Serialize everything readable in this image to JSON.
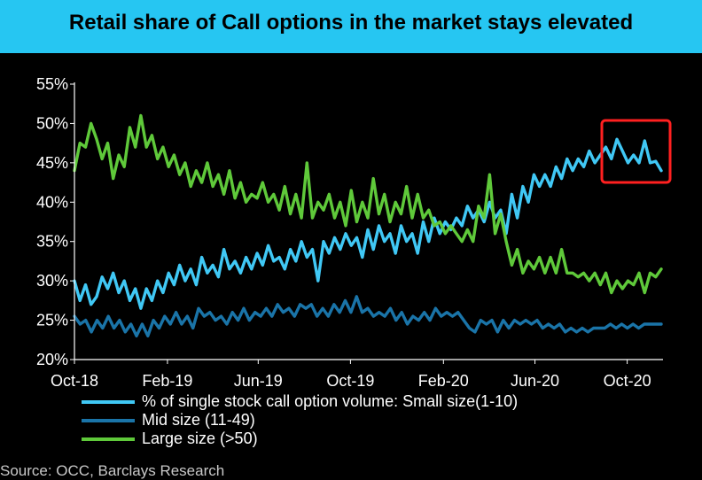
{
  "colors": {
    "background": "#000000",
    "title_band": "#26c6f2",
    "small": "#40c8f5",
    "mid": "#1a74a8",
    "large": "#5fc93a",
    "highlight_box": "#ff2020",
    "axis": "#ffffff"
  },
  "chart_data": {
    "type": "line",
    "title": "Retail share of Call options in the market stays elevated",
    "xlabel": "",
    "ylabel": "",
    "ylim": [
      20,
      55
    ],
    "y_ticks": [
      "20%",
      "25%",
      "30%",
      "35%",
      "40%",
      "45%",
      "50%",
      "55%"
    ],
    "x_ticks": [
      "Oct-18",
      "Feb-19",
      "Jun-19",
      "Oct-19",
      "Feb-20",
      "Jun-20",
      "Oct-20"
    ],
    "x_range": [
      "2018-10-01",
      "2020-11-15"
    ],
    "series": [
      {
        "name": "% of single stock call option volume: Small size(1-10)",
        "color_key": "small",
        "values": [
          30,
          27.5,
          29.5,
          27,
          28,
          30.5,
          29,
          31,
          28.5,
          30,
          27.5,
          29,
          26.5,
          29,
          27.5,
          30,
          28.5,
          31,
          29.5,
          32,
          30,
          31.5,
          29.5,
          33,
          31,
          32,
          30.5,
          34,
          31.5,
          32.5,
          31,
          33,
          31.5,
          33.5,
          32,
          34.5,
          32.5,
          33,
          31.5,
          34,
          32.5,
          35,
          33,
          34,
          30,
          35,
          33.5,
          35.5,
          34,
          36,
          34.5,
          35.5,
          33,
          36.5,
          34,
          37,
          35,
          36,
          33.5,
          37,
          35,
          36,
          33.5,
          37.5,
          35,
          38,
          36,
          37.5,
          36.5,
          38,
          37,
          39.5,
          38,
          39,
          37.5,
          40,
          38,
          39,
          36,
          41,
          38,
          42,
          40,
          43.5,
          42,
          43.5,
          42,
          44.5,
          43,
          45.5,
          44,
          45.5,
          44.5,
          46.5,
          45,
          46,
          47,
          45.5,
          48,
          46.5,
          45,
          46,
          45,
          47.8,
          45,
          45.2,
          44
        ]
      },
      {
        "name": "Mid size (11-49)",
        "color_key": "mid",
        "values": [
          25.5,
          24.5,
          25,
          23.5,
          25,
          24,
          25.5,
          24,
          25,
          23.5,
          24.5,
          23,
          24.5,
          23,
          25,
          24,
          25.5,
          24.5,
          26,
          24.5,
          25.5,
          24,
          26.5,
          25.5,
          26,
          25,
          25.5,
          24.5,
          26,
          25,
          26.5,
          25,
          26,
          25.5,
          26.5,
          25.5,
          27,
          26,
          26.5,
          25.5,
          27,
          26.5,
          27,
          25.5,
          26.5,
          25.5,
          27,
          26,
          27.5,
          26,
          28,
          26,
          26.5,
          25.5,
          26,
          25.5,
          26.5,
          25,
          26,
          24.5,
          25.5,
          25,
          26,
          25,
          26.5,
          25.5,
          26,
          25.5,
          26,
          25,
          24,
          23.5,
          25,
          24.5,
          25,
          23.5,
          25,
          24,
          25,
          24.5,
          25,
          24.5,
          25,
          24,
          24.5,
          24,
          24.5,
          23.5,
          24,
          23.5,
          24,
          23.5,
          24,
          24,
          24,
          24.5,
          24,
          24.5,
          24,
          24.5,
          24,
          24.5,
          24.5,
          24.5,
          24.5
        ]
      },
      {
        "name": "Large size (>50)",
        "color_key": "large",
        "values": [
          44,
          47.5,
          47,
          50,
          48,
          45.5,
          47.5,
          43,
          46,
          44.5,
          49.5,
          47,
          51,
          47,
          48.5,
          45.5,
          47,
          44.5,
          46,
          43.5,
          45,
          42,
          44,
          42.5,
          45,
          42,
          43.5,
          41,
          44,
          40.5,
          42.5,
          40,
          41,
          40.5,
          42.5,
          40,
          41,
          39,
          42,
          38.5,
          41,
          38,
          45,
          38,
          40,
          39,
          41,
          38,
          40,
          37,
          41.5,
          37.5,
          40,
          38,
          43,
          38.5,
          41,
          37.5,
          40,
          38.5,
          42,
          38,
          41,
          38,
          39,
          37,
          37.5,
          36,
          37,
          36,
          35,
          36.5,
          35,
          39.5,
          38,
          43.5,
          36,
          38.5,
          35,
          32,
          34,
          31,
          32.5,
          31.5,
          33,
          31,
          33,
          31,
          34,
          31,
          31,
          30.5,
          31,
          30,
          31,
          29.5,
          31,
          28.5,
          30,
          29,
          30,
          29.5,
          31,
          28.5,
          31,
          30.5,
          31.5
        ]
      }
    ],
    "annotation": "red rectangle highlighting the latest small-size readings (Sep-20 to Oct-20)"
  },
  "source": "Source: OCC, Barclays Research"
}
